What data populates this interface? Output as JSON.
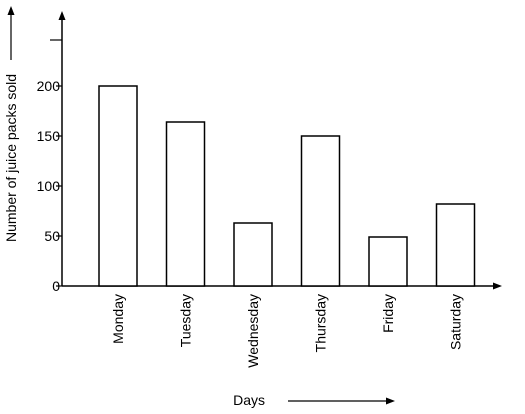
{
  "chart_data": {
    "type": "bar",
    "categories": [
      "Monday",
      "Tuesday",
      "Wednesday",
      "Thursday",
      "Friday",
      "Saturday"
    ],
    "values": [
      200,
      164,
      63,
      150,
      49,
      82
    ],
    "xlabel": "Days",
    "ylabel": "Number of juice packs sold",
    "yticks": [
      0,
      50,
      100,
      150,
      200
    ],
    "ylim": [
      0,
      250
    ],
    "grid": false,
    "legend": "none",
    "bar_fill": "#ffffff",
    "bar_stroke": "#000000",
    "axis_color": "#000000"
  }
}
